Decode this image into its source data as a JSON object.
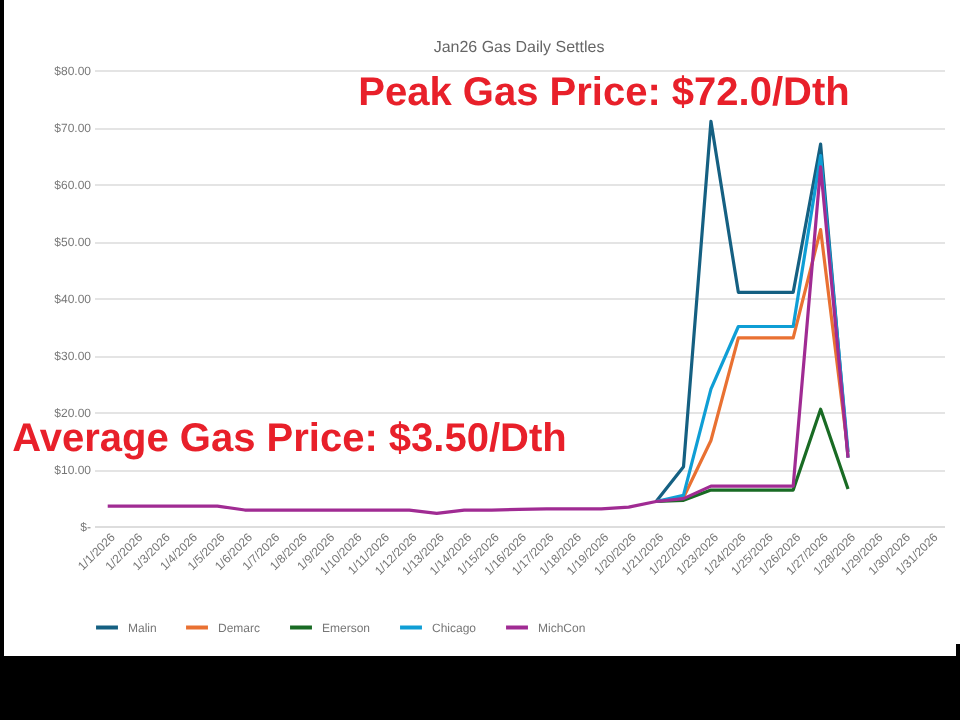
{
  "chart_data": {
    "type": "line",
    "title": "Jan26 Gas Daily Settles",
    "categories": [
      "1/1/2026",
      "1/2/2026",
      "1/3/2026",
      "1/4/2026",
      "1/5/2026",
      "1/6/2026",
      "1/7/2026",
      "1/8/2026",
      "1/9/2026",
      "1/10/2026",
      "1/11/2026",
      "1/12/2026",
      "1/13/2026",
      "1/14/2026",
      "1/15/2026",
      "1/16/2026",
      "1/17/2026",
      "1/18/2026",
      "1/19/2026",
      "1/20/2026",
      "1/21/2026",
      "1/22/2026",
      "1/23/2026",
      "1/24/2026",
      "1/25/2026",
      "1/26/2026",
      "1/27/2026",
      "1/28/2026",
      "1/29/2026",
      "1/30/2026",
      "1/31/2026"
    ],
    "series": [
      {
        "name": "Malin",
        "color": "#156082",
        "values": [
          null,
          null,
          null,
          null,
          null,
          null,
          null,
          null,
          null,
          null,
          null,
          null,
          null,
          null,
          null,
          null,
          null,
          null,
          null,
          null,
          4.3,
          10.4,
          71,
          41,
          41,
          41,
          67,
          12,
          null,
          null,
          null
        ]
      },
      {
        "name": "Demarc",
        "color": "#e97132",
        "values": [
          null,
          null,
          null,
          null,
          null,
          null,
          null,
          null,
          null,
          null,
          null,
          null,
          null,
          null,
          null,
          null,
          null,
          null,
          null,
          null,
          4.3,
          5.0,
          15,
          33,
          33,
          33,
          52,
          13,
          null,
          null,
          null
        ]
      },
      {
        "name": "Emerson",
        "color": "#196b24",
        "values": [
          null,
          null,
          null,
          null,
          null,
          null,
          null,
          null,
          null,
          null,
          null,
          null,
          null,
          null,
          null,
          null,
          null,
          null,
          null,
          null,
          4.3,
          4.5,
          6.3,
          6.3,
          6.3,
          6.3,
          20.5,
          6.5,
          null,
          null,
          null
        ]
      },
      {
        "name": "Chicago",
        "color": "#0f9ed5",
        "values": [
          null,
          null,
          null,
          null,
          null,
          null,
          null,
          null,
          null,
          null,
          null,
          null,
          null,
          null,
          null,
          null,
          null,
          null,
          null,
          null,
          4.3,
          5.4,
          24,
          35,
          35,
          35,
          65,
          13,
          null,
          null,
          null
        ]
      },
      {
        "name": "MichCon",
        "color": "#a02b93",
        "values": [
          3.5,
          3.5,
          3.5,
          3.5,
          3.5,
          2.8,
          2.8,
          2.8,
          2.8,
          2.8,
          2.8,
          2.8,
          2.2,
          2.8,
          2.8,
          2.9,
          3,
          3,
          3,
          3.3,
          4.3,
          4.8,
          7,
          7,
          7,
          7,
          63,
          12,
          null,
          null,
          null
        ]
      }
    ],
    "ylim": [
      0,
      80
    ],
    "yticks": [
      {
        "value": 0,
        "label": "$-"
      },
      {
        "value": 10,
        "label": "$10.00"
      },
      {
        "value": 20,
        "label": "$20.00"
      },
      {
        "value": 30,
        "label": "$30.00"
      },
      {
        "value": 40,
        "label": "$40.00"
      },
      {
        "value": 50,
        "label": "$50.00"
      },
      {
        "value": 60,
        "label": "$60.00"
      },
      {
        "value": 70,
        "label": "$70.00"
      },
      {
        "value": 80,
        "label": "$80.00"
      }
    ],
    "grid": "y",
    "legend": "bottom",
    "marker": "none",
    "line_style": "solid",
    "annotations": [
      "Peak Gas Price: $72.0/Dth",
      "Average Gas Price: $3.50/Dth"
    ]
  }
}
